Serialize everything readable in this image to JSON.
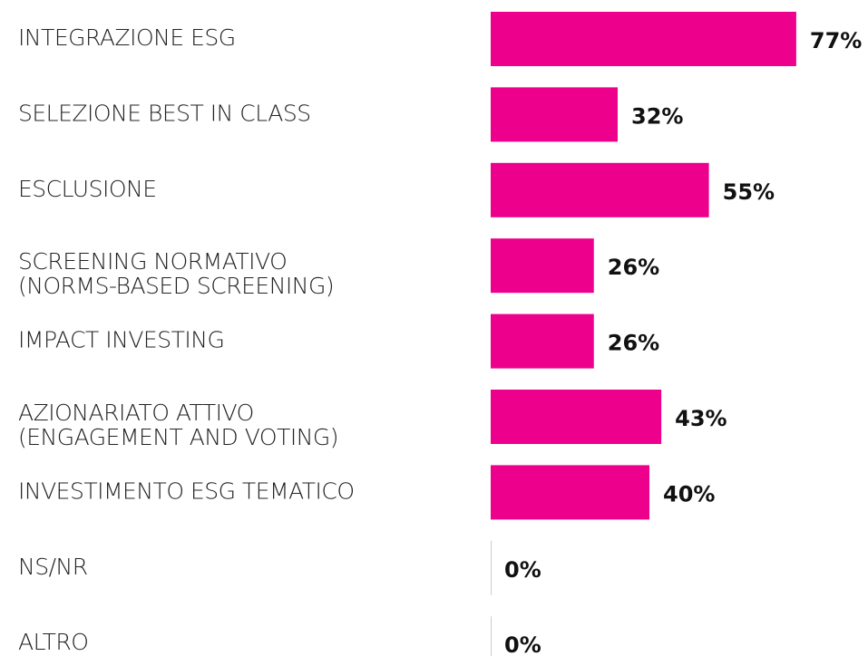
{
  "chart_data": {
    "type": "bar",
    "orientation": "horizontal",
    "categories": [
      "INTEGRAZIONE ESG",
      "SELEZIONE BEST IN CLASS",
      "ESCLUSIONE",
      "SCREENING NORMATIVO\n(NORMS-BASED SCREENING)",
      "IMPACT INVESTING",
      "AZIONARIATO ATTIVO\n(ENGAGEMENT AND VOTING)",
      "INVESTIMENTO ESG TEMATICO",
      "NS/NR",
      "ALTRO"
    ],
    "values": [
      77,
      32,
      55,
      26,
      26,
      43,
      40,
      0,
      0
    ],
    "value_labels": [
      "77%",
      "32%",
      "55%",
      "26%",
      "26%",
      "43%",
      "40%",
      "0%",
      "0%"
    ],
    "color": "#ec008c"
  }
}
